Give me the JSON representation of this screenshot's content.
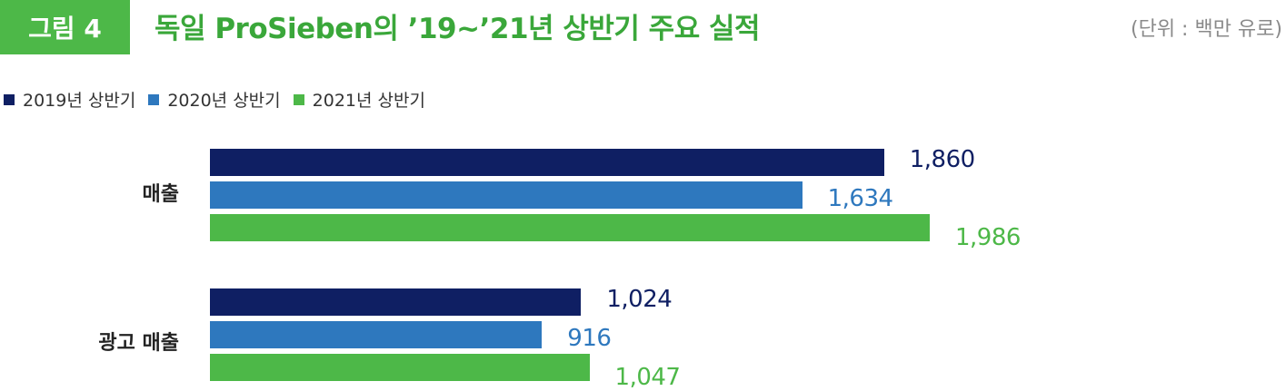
{
  "figure": {
    "badge": "그림 4",
    "title": "독일 ProSieben의 ’19~’21년 상반기 주요 실적",
    "unit": "(단위 : 백만 유로)"
  },
  "chart_data": {
    "type": "bar",
    "orientation": "horizontal",
    "categories": [
      "매출",
      "광고 매출"
    ],
    "series": [
      {
        "name": "2019년 상반기",
        "color": "#0f1f63",
        "values": [
          1860,
          1024
        ],
        "labels": [
          "1,860",
          "1,024"
        ]
      },
      {
        "name": "2020년 상반기",
        "color": "#2e78be",
        "values": [
          1634,
          916
        ],
        "labels": [
          "1,634",
          "916"
        ]
      },
      {
        "name": "2021년 상반기",
        "color": "#4db848",
        "values": [
          1986,
          1047
        ],
        "labels": [
          "1,986",
          "1,047"
        ]
      }
    ],
    "xlim": [
      0,
      1986
    ],
    "grid": false,
    "legend_position": "top-left"
  }
}
